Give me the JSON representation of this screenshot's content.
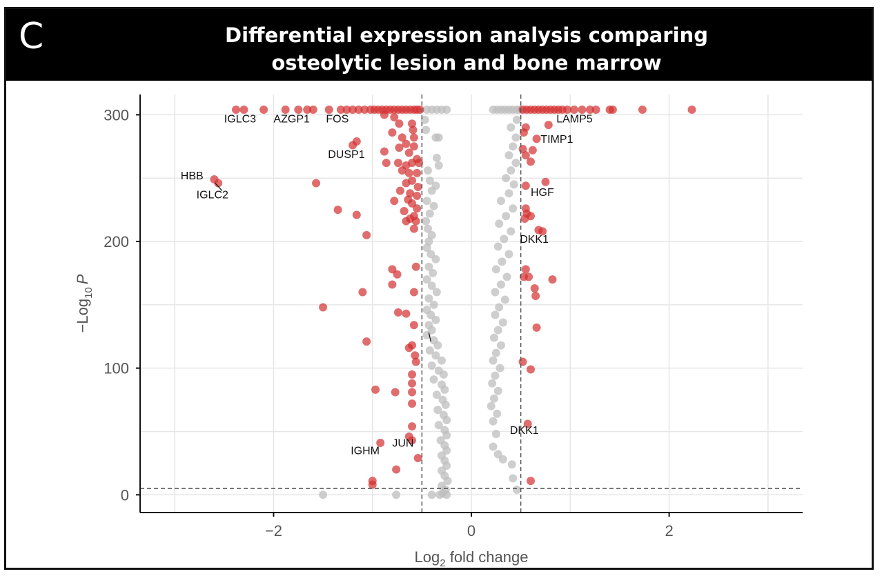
{
  "panel_letter": "C",
  "title_lines": [
    "Differential expression analysis comparing",
    "osteolytic lesion and bone marrow"
  ],
  "colors": {
    "significant": "#d32f2f",
    "nonsignificant": "#bdbdbd",
    "threshold": "#555555",
    "grid": "#e6e6e6"
  },
  "chart_data": {
    "type": "scatter",
    "title": "Differential expression analysis comparing osteolytic lesion and bone marrow",
    "xlabel_main": "Log",
    "xlabel_sub": "2",
    "xlabel_tail": " fold change",
    "ylabel_pre": "−Log",
    "ylabel_sub": "10",
    "ylabel_post": "P",
    "xlim": [
      -3.35,
      3.35
    ],
    "ylim": [
      -14,
      316
    ],
    "xticks": [
      -2,
      0,
      2
    ],
    "xtick_labels": [
      "−2",
      "0",
      "2"
    ],
    "yticks": [
      0,
      100,
      200,
      300
    ],
    "ytick_labels": [
      "0",
      "100",
      "200",
      "300"
    ],
    "fc_threshold": 0.5,
    "p_threshold": 5,
    "significant_points": [
      [
        -2.38,
        304
      ],
      [
        -2.3,
        304
      ],
      [
        -2.1,
        304
      ],
      [
        -1.88,
        304
      ],
      [
        -1.75,
        304
      ],
      [
        -1.66,
        304
      ],
      [
        -1.6,
        304
      ],
      [
        -1.44,
        304
      ],
      [
        -1.32,
        304
      ],
      [
        -1.26,
        304
      ],
      [
        -1.2,
        304
      ],
      [
        -1.14,
        304
      ],
      [
        -1.08,
        304
      ],
      [
        -1.02,
        304
      ],
      [
        -0.98,
        304
      ],
      [
        -0.94,
        304
      ],
      [
        -0.9,
        304
      ],
      [
        -0.86,
        304
      ],
      [
        -0.82,
        304
      ],
      [
        -0.78,
        304
      ],
      [
        -0.74,
        304
      ],
      [
        -0.7,
        304
      ],
      [
        -0.66,
        304
      ],
      [
        -0.62,
        304
      ],
      [
        -0.58,
        304
      ],
      [
        -0.55,
        304
      ],
      [
        -0.52,
        304
      ],
      [
        -0.88,
        300
      ],
      [
        -0.78,
        298
      ],
      [
        -0.73,
        293
      ],
      [
        -0.6,
        293
      ],
      [
        -0.59,
        288
      ],
      [
        -0.8,
        286
      ],
      [
        -0.7,
        282
      ],
      [
        -0.58,
        282
      ],
      [
        -0.66,
        277
      ],
      [
        -1.2,
        276
      ],
      [
        -0.73,
        274
      ],
      [
        -0.58,
        275
      ],
      [
        -1.16,
        279
      ],
      [
        -0.88,
        271
      ],
      [
        -0.63,
        270
      ],
      [
        -0.55,
        265
      ],
      [
        -0.86,
        262
      ],
      [
        -0.74,
        262
      ],
      [
        -0.66,
        260
      ],
      [
        -0.6,
        262
      ],
      [
        -0.53,
        262
      ],
      [
        -0.7,
        256
      ],
      [
        -0.63,
        254
      ],
      [
        -0.55,
        254
      ],
      [
        -0.6,
        248
      ],
      [
        -0.66,
        246
      ],
      [
        -0.54,
        243
      ],
      [
        -0.72,
        240
      ],
      [
        -0.62,
        238
      ],
      [
        -0.55,
        236
      ],
      [
        -0.64,
        233
      ],
      [
        -0.78,
        232
      ],
      [
        -0.6,
        230
      ],
      [
        -0.55,
        226
      ],
      [
        -0.68,
        224
      ],
      [
        -0.58,
        220
      ],
      [
        -0.62,
        218
      ],
      [
        -0.56,
        216
      ],
      [
        -0.66,
        216
      ],
      [
        -0.58,
        210
      ],
      [
        -2.6,
        249
      ],
      [
        -2.56,
        246
      ],
      [
        -1.57,
        246
      ],
      [
        -1.35,
        225
      ],
      [
        -1.16,
        221
      ],
      [
        -1.06,
        205
      ],
      [
        -0.8,
        178
      ],
      [
        -0.75,
        174
      ],
      [
        -0.56,
        180
      ],
      [
        -0.8,
        166
      ],
      [
        -0.58,
        160
      ],
      [
        -1.1,
        160
      ],
      [
        -1.5,
        148
      ],
      [
        -0.74,
        144
      ],
      [
        -0.66,
        143
      ],
      [
        -0.58,
        134
      ],
      [
        -1.06,
        121
      ],
      [
        -0.6,
        118
      ],
      [
        -0.63,
        116
      ],
      [
        -0.57,
        110
      ],
      [
        -0.56,
        105
      ],
      [
        -0.6,
        95
      ],
      [
        -0.6,
        88
      ],
      [
        -0.6,
        81
      ],
      [
        -0.97,
        83
      ],
      [
        -0.77,
        81
      ],
      [
        -0.6,
        72
      ],
      [
        -0.6,
        54
      ],
      [
        -0.6,
        43
      ],
      [
        -0.63,
        46
      ],
      [
        -0.92,
        41
      ],
      [
        -0.54,
        29
      ],
      [
        -0.76,
        20
      ],
      [
        -1.0,
        11
      ],
      [
        -1.0,
        8
      ],
      [
        0.52,
        304
      ],
      [
        0.56,
        304
      ],
      [
        0.6,
        304
      ],
      [
        0.64,
        304
      ],
      [
        0.68,
        304
      ],
      [
        0.72,
        304
      ],
      [
        0.76,
        304
      ],
      [
        0.8,
        304
      ],
      [
        0.84,
        304
      ],
      [
        0.88,
        304
      ],
      [
        0.92,
        304
      ],
      [
        0.97,
        304
      ],
      [
        1.04,
        304
      ],
      [
        1.12,
        304
      ],
      [
        1.2,
        304
      ],
      [
        1.26,
        304
      ],
      [
        1.4,
        304
      ],
      [
        1.43,
        304
      ],
      [
        1.73,
        304
      ],
      [
        2.23,
        304
      ],
      [
        0.78,
        292
      ],
      [
        0.55,
        290
      ],
      [
        0.53,
        286
      ],
      [
        0.66,
        281
      ],
      [
        0.62,
        272
      ],
      [
        0.55,
        268
      ],
      [
        0.52,
        273
      ],
      [
        0.6,
        263
      ],
      [
        0.75,
        247
      ],
      [
        0.55,
        244
      ],
      [
        0.55,
        226
      ],
      [
        0.56,
        222
      ],
      [
        0.6,
        220
      ],
      [
        0.54,
        218
      ],
      [
        0.68,
        209
      ],
      [
        0.72,
        208
      ],
      [
        0.55,
        178
      ],
      [
        0.58,
        172
      ],
      [
        0.53,
        172
      ],
      [
        0.82,
        170
      ],
      [
        0.64,
        163
      ],
      [
        0.65,
        157
      ],
      [
        0.66,
        132
      ],
      [
        0.6,
        99
      ],
      [
        0.52,
        105
      ],
      [
        0.57,
        56
      ],
      [
        0.6,
        11
      ]
    ],
    "nonsignificant_points": [
      [
        -0.45,
        304
      ],
      [
        -0.4,
        304
      ],
      [
        -0.35,
        304
      ],
      [
        -0.3,
        304
      ],
      [
        -0.25,
        304
      ],
      [
        0.22,
        304
      ],
      [
        0.26,
        304
      ],
      [
        0.3,
        304
      ],
      [
        0.34,
        304
      ],
      [
        0.38,
        304
      ],
      [
        0.42,
        304
      ],
      [
        0.46,
        304
      ],
      [
        0.49,
        304
      ],
      [
        -0.47,
        296
      ],
      [
        -0.46,
        288
      ],
      [
        -0.36,
        282
      ],
      [
        -0.33,
        282
      ],
      [
        -0.35,
        266
      ],
      [
        -0.33,
        260
      ],
      [
        -0.44,
        256
      ],
      [
        -0.42,
        248
      ],
      [
        -0.36,
        244
      ],
      [
        -0.4,
        240
      ],
      [
        -0.45,
        232
      ],
      [
        -0.38,
        228
      ],
      [
        -0.42,
        222
      ],
      [
        -0.46,
        216
      ],
      [
        -0.44,
        210
      ],
      [
        -0.4,
        205
      ],
      [
        -0.43,
        200
      ],
      [
        -0.45,
        195
      ],
      [
        -0.41,
        190
      ],
      [
        -0.36,
        186
      ],
      [
        -0.43,
        180
      ],
      [
        -0.39,
        175
      ],
      [
        -0.45,
        170
      ],
      [
        -0.4,
        165
      ],
      [
        -0.35,
        160
      ],
      [
        -0.43,
        155
      ],
      [
        -0.38,
        150
      ],
      [
        -0.45,
        146
      ],
      [
        -0.41,
        142
      ],
      [
        -0.36,
        138
      ],
      [
        -0.43,
        134
      ],
      [
        -0.4,
        130
      ],
      [
        -0.45,
        126
      ],
      [
        -0.38,
        122
      ],
      [
        -0.34,
        118
      ],
      [
        -0.42,
        114
      ],
      [
        -0.36,
        110
      ],
      [
        -0.3,
        106
      ],
      [
        -0.4,
        102
      ],
      [
        -0.33,
        98
      ],
      [
        -0.28,
        95
      ],
      [
        -0.38,
        91
      ],
      [
        -0.3,
        87
      ],
      [
        -0.27,
        83
      ],
      [
        -0.35,
        79
      ],
      [
        -0.29,
        75
      ],
      [
        -0.26,
        71
      ],
      [
        -0.34,
        67
      ],
      [
        -0.28,
        63
      ],
      [
        -0.25,
        59
      ],
      [
        -0.33,
        55
      ],
      [
        -0.27,
        51
      ],
      [
        -0.25,
        47
      ],
      [
        -0.31,
        43
      ],
      [
        -0.27,
        39
      ],
      [
        -0.25,
        35
      ],
      [
        -0.3,
        31
      ],
      [
        -0.27,
        27
      ],
      [
        -0.25,
        23
      ],
      [
        -0.3,
        19
      ],
      [
        -0.27,
        15
      ],
      [
        -0.24,
        11
      ],
      [
        -0.3,
        7
      ],
      [
        -0.26,
        4
      ],
      [
        -0.29,
        1
      ],
      [
        -0.25,
        0
      ],
      [
        -0.32,
        0
      ],
      [
        -0.4,
        0
      ],
      [
        -0.76,
        0
      ],
      [
        -1.5,
        0
      ],
      [
        0.46,
        296
      ],
      [
        0.4,
        290
      ],
      [
        0.45,
        282
      ],
      [
        0.42,
        275
      ],
      [
        0.38,
        268
      ],
      [
        0.45,
        262
      ],
      [
        0.4,
        256
      ],
      [
        0.35,
        250
      ],
      [
        0.43,
        245
      ],
      [
        0.38,
        238
      ],
      [
        0.3,
        232
      ],
      [
        0.42,
        226
      ],
      [
        0.35,
        220
      ],
      [
        0.28,
        214
      ],
      [
        0.4,
        208
      ],
      [
        0.33,
        202
      ],
      [
        0.27,
        196
      ],
      [
        0.38,
        190
      ],
      [
        0.31,
        184
      ],
      [
        0.25,
        178
      ],
      [
        0.36,
        172
      ],
      [
        0.3,
        166
      ],
      [
        0.24,
        160
      ],
      [
        0.34,
        154
      ],
      [
        0.28,
        148
      ],
      [
        0.24,
        142
      ],
      [
        0.32,
        136
      ],
      [
        0.27,
        130
      ],
      [
        0.23,
        124
      ],
      [
        0.3,
        118
      ],
      [
        0.25,
        112
      ],
      [
        0.22,
        106
      ],
      [
        0.29,
        100
      ],
      [
        0.24,
        94
      ],
      [
        0.21,
        88
      ],
      [
        0.27,
        82
      ],
      [
        0.23,
        76
      ],
      [
        0.2,
        70
      ],
      [
        0.26,
        64
      ],
      [
        0.22,
        58
      ],
      [
        0.25,
        48
      ],
      [
        0.22,
        38
      ],
      [
        0.27,
        32
      ],
      [
        0.32,
        28
      ],
      [
        0.41,
        24
      ],
      [
        0.42,
        13
      ],
      [
        0.46,
        4
      ]
    ],
    "annotations": [
      {
        "text": "IGLC3",
        "x": -2.5,
        "y": 294,
        "anchor": "start"
      },
      {
        "text": "AZGP1",
        "x": -2.0,
        "y": 294,
        "anchor": "start"
      },
      {
        "text": "FOS",
        "x": -1.47,
        "y": 294,
        "anchor": "start"
      },
      {
        "text": "DUSP1",
        "x": -1.45,
        "y": 266,
        "anchor": "start"
      },
      {
        "text": "HBB",
        "x": -2.71,
        "y": 249,
        "anchor": "end"
      },
      {
        "text": "IGLC2",
        "x": -2.78,
        "y": 234,
        "anchor": "start"
      },
      {
        "text": "LAMP5",
        "x": 0.86,
        "y": 294,
        "anchor": "start"
      },
      {
        "text": "TIMP1",
        "x": 0.7,
        "y": 278,
        "anchor": "start"
      },
      {
        "text": "HGF",
        "x": 0.6,
        "y": 236,
        "anchor": "start"
      },
      {
        "text": "DKK1",
        "x": 0.49,
        "y": 199,
        "anchor": "start"
      },
      {
        "text": "DKK1",
        "x": 0.39,
        "y": 48,
        "anchor": "start"
      },
      {
        "text": "IGHM",
        "x": -1.22,
        "y": 32,
        "anchor": "start"
      },
      {
        "text": "JUN",
        "x": -0.8,
        "y": 38,
        "anchor": "start"
      }
    ],
    "leader_lines": [
      [
        -2.59,
        246,
        -2.52,
        240
      ],
      [
        -0.43,
        128,
        -0.41,
        121
      ]
    ]
  }
}
